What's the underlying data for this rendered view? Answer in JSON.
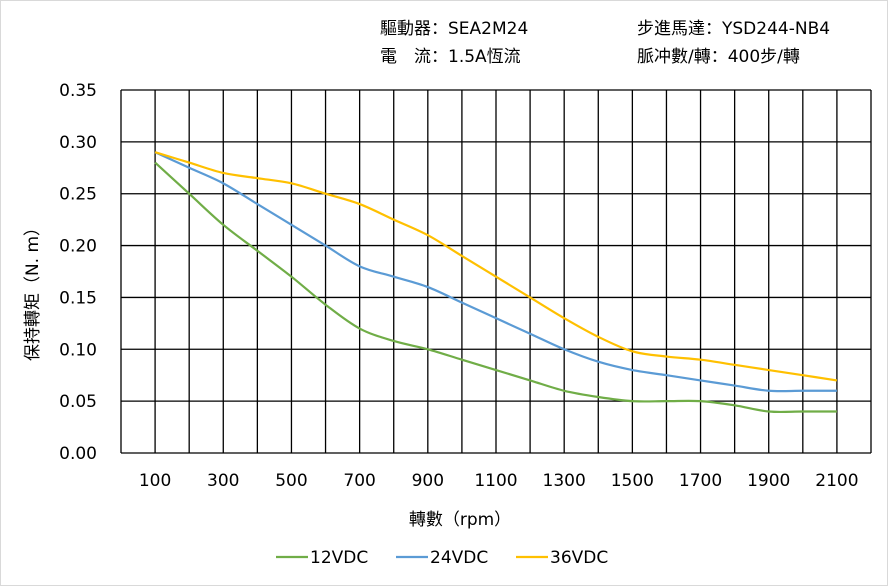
{
  "header": {
    "driver": "驅動器：SEA2M24",
    "motor": "步進馬達：YSD244-NB4",
    "current": "電　流：1.5A恆流",
    "pulses": "脈冲數/轉：400步/轉"
  },
  "chart_data": {
    "type": "line",
    "title": "",
    "xlabel": "轉數（rpm）",
    "ylabel": "保持轉矩（N. m）",
    "xlim": [
      0,
      2200
    ],
    "ylim": [
      0,
      0.35
    ],
    "grid": true,
    "legend_position": "bottom",
    "x_ticks": [
      "100",
      "300",
      "500",
      "700",
      "900",
      "1100",
      "1300",
      "1500",
      "1700",
      "1900",
      "2100"
    ],
    "y_ticks": [
      "0.00",
      "0.05",
      "0.10",
      "0.15",
      "0.20",
      "0.25",
      "0.30",
      "0.35"
    ],
    "x": [
      100,
      200,
      300,
      400,
      500,
      600,
      700,
      800,
      900,
      1000,
      1100,
      1200,
      1300,
      1400,
      1500,
      1600,
      1700,
      1800,
      1900,
      2000,
      2100
    ],
    "series": [
      {
        "name": "12VDC",
        "color": "#70ad47",
        "values": [
          0.28,
          0.25,
          0.22,
          0.195,
          0.17,
          0.143,
          0.12,
          0.108,
          0.1,
          0.09,
          0.08,
          0.07,
          0.06,
          0.054,
          0.05,
          0.05,
          0.05,
          0.046,
          0.04,
          0.04,
          0.04
        ]
      },
      {
        "name": "24VDC",
        "color": "#5b9bd5",
        "values": [
          0.29,
          0.275,
          0.26,
          0.24,
          0.22,
          0.2,
          0.18,
          0.17,
          0.16,
          0.145,
          0.13,
          0.115,
          0.1,
          0.088,
          0.08,
          0.075,
          0.07,
          0.065,
          0.06,
          0.06,
          0.06
        ]
      },
      {
        "name": "36VDC",
        "color": "#ffc000",
        "values": [
          0.29,
          0.28,
          0.27,
          0.265,
          0.26,
          0.25,
          0.24,
          0.225,
          0.21,
          0.19,
          0.17,
          0.15,
          0.13,
          0.112,
          0.098,
          0.093,
          0.09,
          0.085,
          0.08,
          0.075,
          0.07
        ]
      }
    ]
  }
}
